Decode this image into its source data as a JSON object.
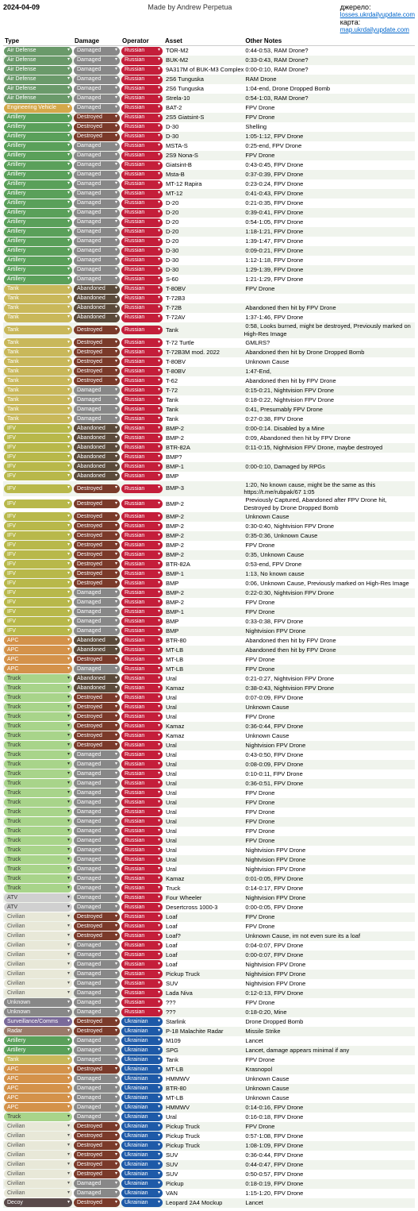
{
  "header": {
    "date": "2024-04-09",
    "made": "Made by Andrew Perpetua",
    "link1_label": "джерело:",
    "link1": "losses.ukrdailyupdate.com",
    "link2_label": "карта:",
    "link2": "map.ukrdailyupdate.com"
  },
  "columns": [
    "Type",
    "Damage",
    "Operator",
    "Asset",
    "Other Notes"
  ],
  "typeColors": {
    "Air Defense": "#6a9a6a",
    "Engineering Vehicle": "#d4a84a",
    "Artillery": "#5aa05a",
    "Tank": "#c9b85a",
    "IFV": "#b8b84a",
    "APC": "#d4924a",
    "Truck": "#a8d48a",
    "ATV": "#d0d0d0",
    "Civilian": "#e8e8d8",
    "Unknown": "#888888",
    "Surveillance/Comms": "#7a6a9a",
    "Radar": "#9a7a6a",
    "Decoy": "#5a4a4a"
  },
  "typeText": {
    "Air Defense": "#fff",
    "Engineering Vehicle": "#fff",
    "Artillery": "#fff",
    "Tank": "#fff",
    "IFV": "#fff",
    "APC": "#fff",
    "Truck": "#333",
    "ATV": "#333",
    "Civilian": "#555",
    "Unknown": "#fff",
    "Surveillance/Comms": "#fff",
    "Radar": "#fff",
    "Decoy": "#fff"
  },
  "damageColors": {
    "Damaged": "#888888",
    "Destroyed": "#7a3a2a",
    "Abandoned": "#5a4a3a"
  },
  "damageText": {
    "Damaged": "#fff",
    "Destroyed": "#fff",
    "Abandoned": "#fff"
  },
  "operatorColors": {
    "Russian": "#c41e3a",
    "Ukrainian": "#1e5aa8"
  },
  "rowMuted": "#f0f4ed",
  "rows": [
    [
      "Air Defense",
      "Damaged",
      "Russian",
      "TOR-M2",
      "0:44-0:53, RAM Drone?"
    ],
    [
      "Air Defense",
      "Damaged",
      "Russian",
      "BUK-M2",
      "0:33-0:43, RAM Drone?"
    ],
    [
      "Air Defense",
      "Damaged",
      "Russian",
      "9A317M of BUK-M3 Complex",
      "0:00-0:10, RAM Drone?"
    ],
    [
      "Air Defense",
      "Damaged",
      "Russian",
      "2S6 Tunguska",
      "RAM Drone"
    ],
    [
      "Air Defense",
      "Damaged",
      "Russian",
      "2S6 Tunguska",
      "1:04-end, Drone Dropped Bomb"
    ],
    [
      "Air Defense",
      "Damaged",
      "Russian",
      "Strela-10",
      "0:54-1:03, RAM Drone?"
    ],
    [
      "Engineering Vehicle",
      "Damaged",
      "Russian",
      "BAT-2",
      "FPV Drone"
    ],
    [
      "Artillery",
      "Destroyed",
      "Russian",
      "2S5 Giatsint-S",
      "FPV Drone"
    ],
    [
      "Artillery",
      "Destroyed",
      "Russian",
      "D-30",
      "Shelling"
    ],
    [
      "Artillery",
      "Destroyed",
      "Russian",
      "D-30",
      "1:05-1:12, FPV Drone"
    ],
    [
      "Artillery",
      "Damaged",
      "Russian",
      "MSTA-S",
      "0:25-end, FPV Drone"
    ],
    [
      "Artillery",
      "Damaged",
      "Russian",
      "2S9 Nona-S",
      "FPV Drone"
    ],
    [
      "Artillery",
      "Damaged",
      "Russian",
      "Giatsint-B",
      "0:43-0:45, FPV Drone"
    ],
    [
      "Artillery",
      "Damaged",
      "Russian",
      "Msta-B",
      "0:37-0:39, FPV Drone"
    ],
    [
      "Artillery",
      "Damaged",
      "Russian",
      "MT-12 Rapira",
      "0:23-0:24, FPV Drone"
    ],
    [
      "Artillery",
      "Damaged",
      "Russian",
      "MT-12",
      "0:41-0:43, FPV Drone"
    ],
    [
      "Artillery",
      "Damaged",
      "Russian",
      "D-20",
      "0:21-0:35, FPV Drone"
    ],
    [
      "Artillery",
      "Damaged",
      "Russian",
      "D-20",
      "0:39-0:41, FPV Drone"
    ],
    [
      "Artillery",
      "Damaged",
      "Russian",
      "D-20",
      "0:54-1:05, FPV Drone"
    ],
    [
      "Artillery",
      "Damaged",
      "Russian",
      "D-20",
      "1:18-1:21, FPV Drone"
    ],
    [
      "Artillery",
      "Damaged",
      "Russian",
      "D-20",
      "1:39-1:47, FPV Drone"
    ],
    [
      "Artillery",
      "Damaged",
      "Russian",
      "D-30",
      "0:09-0:21, FPV Drone"
    ],
    [
      "Artillery",
      "Damaged",
      "Russian",
      "D-30",
      "1:12-1:18, FPV Drone"
    ],
    [
      "Artillery",
      "Damaged",
      "Russian",
      "D-30",
      "1:29-1:39, FPV Drone"
    ],
    [
      "Artillery",
      "Damaged",
      "Russian",
      "S-60",
      "1:21-1:29, FPV Drone"
    ],
    [
      "Tank",
      "Abandoned",
      "Russian",
      "T-80BV",
      "FPV Drone"
    ],
    [
      "Tank",
      "Abandoned",
      "Russian",
      "T-72B3",
      ""
    ],
    [
      "Tank",
      "Abandoned",
      "Russian",
      "T-72B",
      "Abandoned then hit by FPV Drone"
    ],
    [
      "Tank",
      "Abandoned",
      "Russian",
      "T-72AV",
      "1:37-1:46, FPV Drone"
    ],
    [
      "Tank",
      "Destroyed",
      "Russian",
      "Tank",
      "0:58, Looks burned, might be destroyed, Previously marked on High-Res Image"
    ],
    [
      "Tank",
      "Destroyed",
      "Russian",
      "T-72 Turtle",
      "GMLRS?"
    ],
    [
      "Tank",
      "Destroyed",
      "Russian",
      "T-72B3M mod. 2022",
      "Abandoned then hit by Drone Dropped Bomb"
    ],
    [
      "Tank",
      "Destroyed",
      "Russian",
      "T-80BV",
      "Unknown Cause"
    ],
    [
      "Tank",
      "Destroyed",
      "Russian",
      "T-80BV",
      "1:47-End,"
    ],
    [
      "Tank",
      "Destroyed",
      "Russian",
      "T-62",
      "Abandoned then hit by FPV Drone"
    ],
    [
      "Tank",
      "Damaged",
      "Russian",
      "T-72",
      "0:15-0:21, Nightvision FPV Drone"
    ],
    [
      "Tank",
      "Damaged",
      "Russian",
      "Tank",
      "0:18-0:22, Nightvision FPV Drone"
    ],
    [
      "Tank",
      "Damaged",
      "Russian",
      "Tank",
      "0:41, Presumably FPV Drone"
    ],
    [
      "Tank",
      "Damaged",
      "Russian",
      "Tank",
      "0:27-0:38, FPV Drone"
    ],
    [
      "IFV",
      "Abandoned",
      "Russian",
      "BMP-2",
      "0:00-0:14. Disabled by a Mine"
    ],
    [
      "IFV",
      "Abandoned",
      "Russian",
      "BMP-2",
      "0:09, Abandoned then hit by FPV Drone"
    ],
    [
      "IFV",
      "Abandoned",
      "Russian",
      "BTR-82A",
      "0:11-0:15, Nightvision FPV Drone, maybe destroyed"
    ],
    [
      "IFV",
      "Abandoned",
      "Russian",
      "BMP?",
      ""
    ],
    [
      "IFV",
      "Abandoned",
      "Russian",
      "BMP-1",
      "0:00-0:10, Damaged by RPGs"
    ],
    [
      "IFV",
      "Abandoned",
      "Russian",
      "BMP",
      ""
    ],
    [
      "IFV",
      "Destroyed",
      "Russian",
      "BMP-3",
      "1:20, No known cause, might be the same as this https://t.me/rubpak/67 1:05"
    ],
    [
      "IFV",
      "Destroyed",
      "Russian",
      "BMP-2",
      "Previously Captured, Abandoned after FPV Drone hit, Destroyed by Drone Dropped Bomb"
    ],
    [
      "IFV",
      "Destroyed",
      "Russian",
      "BMP-2",
      "Unknown Cause"
    ],
    [
      "IFV",
      "Destroyed",
      "Russian",
      "BMP-2",
      "0:30-0:40, Nightvision FPV Drone"
    ],
    [
      "IFV",
      "Destroyed",
      "Russian",
      "BMP-2",
      "0:35-0:36, Unknown Cause"
    ],
    [
      "IFV",
      "Destroyed",
      "Russian",
      "BMP-2",
      "FPV Drone"
    ],
    [
      "IFV",
      "Destroyed",
      "Russian",
      "BMP-2",
      "0:35, Unknown Cause"
    ],
    [
      "IFV",
      "Destroyed",
      "Russian",
      "BTR-82A",
      "0:53-end, FPV Drone"
    ],
    [
      "IFV",
      "Destroyed",
      "Russian",
      "BMP-1",
      "1:13, No known cause"
    ],
    [
      "IFV",
      "Destroyed",
      "Russian",
      "BMP",
      "0:06, Unknown Cause, Previously marked on High-Res Image"
    ],
    [
      "IFV",
      "Damaged",
      "Russian",
      "BMP-2",
      "0:22-0:30, Nightvision FPV Drone"
    ],
    [
      "IFV",
      "Damaged",
      "Russian",
      "BMP-2",
      "FPV Drone"
    ],
    [
      "IFV",
      "Damaged",
      "Russian",
      "BMP-1",
      "FPV Drone"
    ],
    [
      "IFV",
      "Damaged",
      "Russian",
      "BMP",
      "0:33-0:38, FPV Drone"
    ],
    [
      "IFV",
      "Damaged",
      "Russian",
      "BMP",
      "Nightvision FPV Drone"
    ],
    [
      "APC",
      "Abandoned",
      "Russian",
      "BTR-80",
      "Abandoned then hit by FPV Drone"
    ],
    [
      "APC",
      "Abandoned",
      "Russian",
      "MT-LB",
      "Abandoned then hit by FPV Drone"
    ],
    [
      "APC",
      "Destroyed",
      "Russian",
      "MT-LB",
      "FPV Drone"
    ],
    [
      "APC",
      "Damaged",
      "Russian",
      "MT-LB",
      "FPV Drone"
    ],
    [
      "Truck",
      "Abandoned",
      "Russian",
      "Ural",
      "0:21-0:27, Nightvision FPV Drone"
    ],
    [
      "Truck",
      "Abandoned",
      "Russian",
      "Kamaz",
      "0:38-0:43, Nightvision FPV Drone"
    ],
    [
      "Truck",
      "Destroyed",
      "Russian",
      "Ural",
      "0:07-0:09, FPV Drone"
    ],
    [
      "Truck",
      "Destroyed",
      "Russian",
      "Ural",
      "Unknown Cause"
    ],
    [
      "Truck",
      "Destroyed",
      "Russian",
      "Ural",
      "FPV Drone"
    ],
    [
      "Truck",
      "Destroyed",
      "Russian",
      "Kamaz",
      "0:36-0:44, FPV Drone"
    ],
    [
      "Truck",
      "Destroyed",
      "Russian",
      "Kamaz",
      "Unknown Cause"
    ],
    [
      "Truck",
      "Destroyed",
      "Russian",
      "Ural",
      "Nightvision FPV Drone"
    ],
    [
      "Truck",
      "Damaged",
      "Russian",
      "Ural",
      "0:43-0:50, FPV Drone"
    ],
    [
      "Truck",
      "Damaged",
      "Russian",
      "Ural",
      "0:08-0:09, FPV Drone"
    ],
    [
      "Truck",
      "Damaged",
      "Russian",
      "Ural",
      "0:10-0:11, FPV Drone"
    ],
    [
      "Truck",
      "Damaged",
      "Russian",
      "Ural",
      "0:36-0:51, FPV Drone"
    ],
    [
      "Truck",
      "Damaged",
      "Russian",
      "Ural",
      "FPV Drone"
    ],
    [
      "Truck",
      "Damaged",
      "Russian",
      "Ural",
      "FPV Drone"
    ],
    [
      "Truck",
      "Damaged",
      "Russian",
      "Ural",
      "FPV Drone"
    ],
    [
      "Truck",
      "Damaged",
      "Russian",
      "Ural",
      "FPV Drone"
    ],
    [
      "Truck",
      "Damaged",
      "Russian",
      "Ural",
      "FPV Drone"
    ],
    [
      "Truck",
      "Damaged",
      "Russian",
      "Ural",
      "FPV Drone"
    ],
    [
      "Truck",
      "Damaged",
      "Russian",
      "Ural",
      "Nightvision FPV Drone"
    ],
    [
      "Truck",
      "Damaged",
      "Russian",
      "Ural",
      "Nightvision FPV Drone"
    ],
    [
      "Truck",
      "Damaged",
      "Russian",
      "Ural",
      "Nightvision FPV Drone"
    ],
    [
      "Truck",
      "Damaged",
      "Russian",
      "Kamaz",
      "0:01-0:05, FPV Drone"
    ],
    [
      "Truck",
      "Damaged",
      "Russian",
      "Truck",
      "0:14-0:17, FPV Drone"
    ],
    [
      "ATV",
      "Damaged",
      "Russian",
      "Four Wheeler",
      "Nightvision FPV Drone"
    ],
    [
      "ATV",
      "Damaged",
      "Russian",
      "Desertcross 1000-3",
      "0:00-0:05, FPV Drone"
    ],
    [
      "Civilian",
      "Destroyed",
      "Russian",
      "Loaf",
      "FPV Drone"
    ],
    [
      "Civilian",
      "Destroyed",
      "Russian",
      "Loaf",
      "FPV Drone"
    ],
    [
      "Civilian",
      "Destroyed",
      "Russian",
      "Loaf?",
      "Unknown Cause, im not even sure its a loaf"
    ],
    [
      "Civilian",
      "Damaged",
      "Russian",
      "Loaf",
      "0:04-0:07, FPV Drone"
    ],
    [
      "Civilian",
      "Damaged",
      "Russian",
      "Loaf",
      "0:00-0:07, FPV Drone"
    ],
    [
      "Civilian",
      "Damaged",
      "Russian",
      "Loaf",
      "Nightvision FPV Drone"
    ],
    [
      "Civilian",
      "Damaged",
      "Russian",
      "Pickup Truck",
      "Nightvision FPV Drone"
    ],
    [
      "Civilian",
      "Damaged",
      "Russian",
      "SUV",
      "Nightvision FPV Drone"
    ],
    [
      "Civilian",
      "Damaged",
      "Russian",
      "Lada Niva",
      "0:12-0:13, FPV Drone"
    ],
    [
      "Unknown",
      "Damaged",
      "Russian",
      "???",
      "FPV Drone"
    ],
    [
      "Unknown",
      "Damaged",
      "Russian",
      "???",
      "0:18-0:20, Mine"
    ],
    [
      "Surveillance/Comms",
      "Destroyed",
      "Ukrainian",
      "Starlink",
      "Drone Dropped Bomb"
    ],
    [
      "Radar",
      "Destroyed",
      "Ukrainian",
      "P-18 Malachite Radar",
      "Missile Strike"
    ],
    [
      "Artillery",
      "Damaged",
      "Ukrainian",
      "M109",
      "Lancet"
    ],
    [
      "Artillery",
      "Damaged",
      "Ukrainian",
      "SPG",
      "Lancet, damage appears minimal if any"
    ],
    [
      "Tank",
      "Damaged",
      "Ukrainian",
      "Tank",
      "FPV Drone"
    ],
    [
      "APC",
      "Destroyed",
      "Ukrainian",
      "MT-LB",
      "Krasnopol"
    ],
    [
      "APC",
      "Damaged",
      "Ukrainian",
      "HMMWV",
      "Unknown Cause"
    ],
    [
      "APC",
      "Damaged",
      "Ukrainian",
      "BTR-80",
      "Unknown Cause"
    ],
    [
      "APC",
      "Damaged",
      "Ukrainian",
      "MT-LB",
      "Unknown Cause"
    ],
    [
      "APC",
      "Damaged",
      "Ukrainian",
      "HMMWV",
      "0:14-0:16, FPV Drone"
    ],
    [
      "Truck",
      "Damaged",
      "Ukrainian",
      "Ural",
      "0:16-0:18, FPV Drone"
    ],
    [
      "Civilian",
      "Destroyed",
      "Ukrainian",
      "Pickup Truck",
      "FPV Drone"
    ],
    [
      "Civilian",
      "Destroyed",
      "Ukrainian",
      "Pickup Truck",
      "0:57-1:08, FPV Drone"
    ],
    [
      "Civilian",
      "Destroyed",
      "Ukrainian",
      "Pickup Truck",
      "1:08-1:09, FPV Drone"
    ],
    [
      "Civilian",
      "Destroyed",
      "Ukrainian",
      "SUV",
      "0:36-0:44, FPV Drone"
    ],
    [
      "Civilian",
      "Destroyed",
      "Ukrainian",
      "SUV",
      "0:44-0:47, FPV Drone"
    ],
    [
      "Civilian",
      "Destroyed",
      "Ukrainian",
      "SUV",
      "0:50-0:57, FPV Drone"
    ],
    [
      "Civilian",
      "Damaged",
      "Ukrainian",
      "Pickup",
      "0:18-0:19, FPV Drone"
    ],
    [
      "Civilian",
      "Damaged",
      "Ukrainian",
      "VAN",
      "1:15-1:20, FPV Drone"
    ],
    [
      "Decoy",
      "Destroyed",
      "Ukrainian",
      "Leopard 2A4 Mockup",
      "Lancet"
    ]
  ]
}
